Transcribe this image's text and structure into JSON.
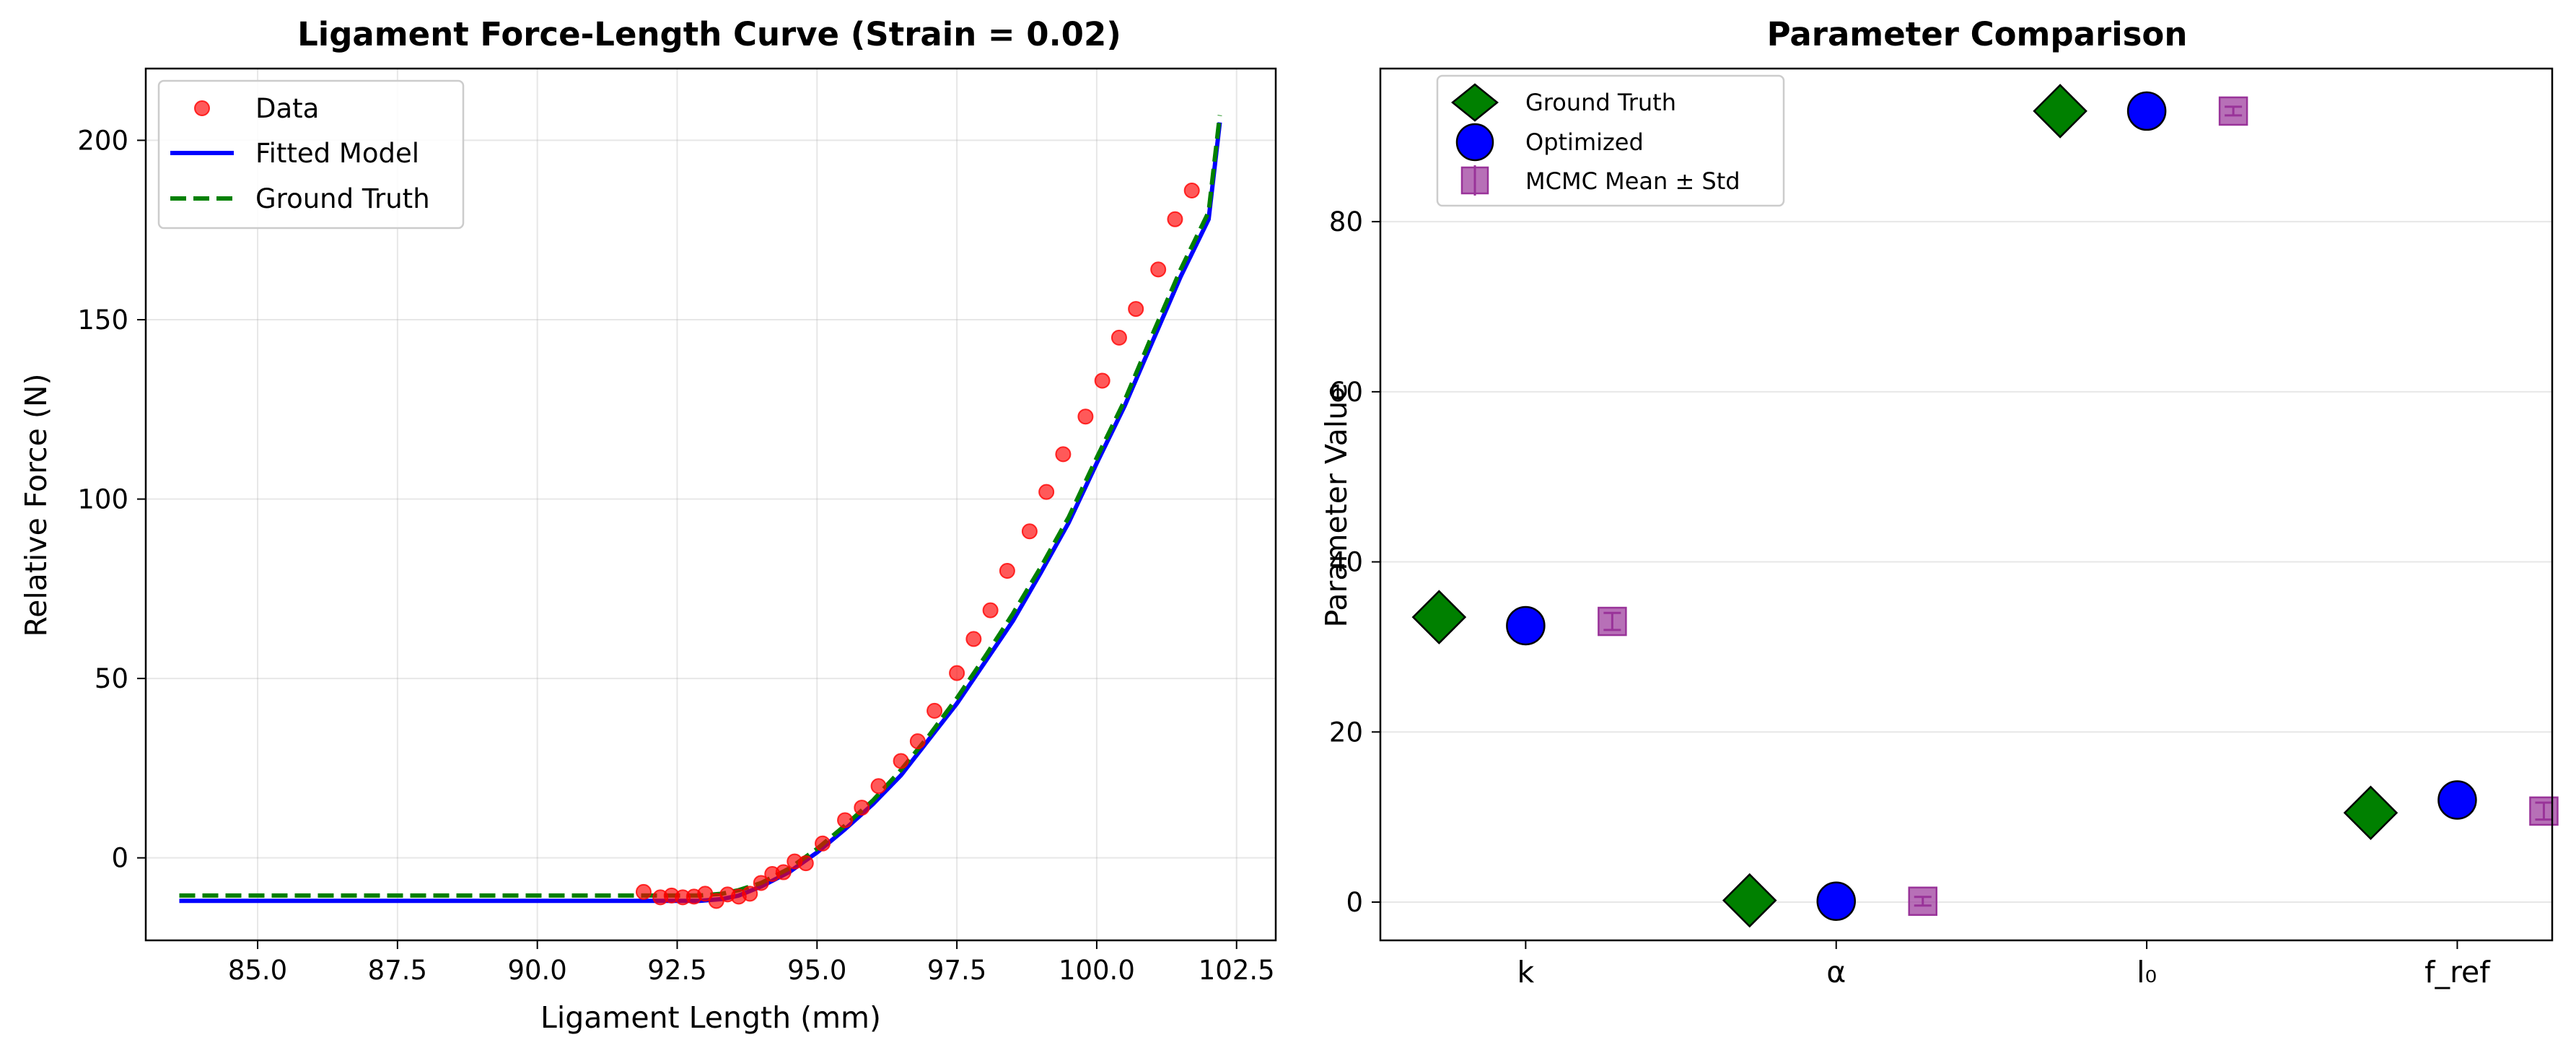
{
  "chart_data": [
    {
      "type": "line",
      "title": "Ligament Force-Length Curve (Strain = 0.02)",
      "xlabel": "Ligament Length (mm)",
      "ylabel": "Relative Force (N)",
      "xlim": [
        83.0,
        103.2
      ],
      "ylim": [
        -23,
        220
      ],
      "xticks": [
        "85.0",
        "87.5",
        "90.0",
        "92.5",
        "95.0",
        "97.5",
        "100.0",
        "102.5"
      ],
      "xtick_values": [
        85.0,
        87.5,
        90.0,
        92.5,
        95.0,
        97.5,
        100.0,
        102.5
      ],
      "yticks": [
        "0",
        "50",
        "100",
        "150",
        "200"
      ],
      "ytick_values": [
        0,
        50,
        100,
        150,
        200
      ],
      "grid": true,
      "legend_position": "top-left",
      "colors": {
        "data": "#ff0000",
        "fitted": "#0000ff",
        "ground_truth": "#008000"
      },
      "series": [
        {
          "name": "Data",
          "kind": "scatter",
          "x": [
            91.9,
            92.2,
            92.4,
            92.6,
            92.8,
            93.0,
            93.2,
            93.4,
            93.6,
            93.8,
            94.0,
            94.2,
            94.4,
            94.6,
            94.8,
            95.1,
            95.5,
            95.8,
            96.1,
            96.5,
            96.8,
            97.1,
            97.5,
            97.8,
            98.1,
            98.4,
            98.8,
            99.1,
            99.4,
            99.8,
            100.1,
            100.4,
            100.7,
            101.1,
            101.4,
            101.7
          ],
          "y": [
            -9.5,
            -11.0,
            -10.5,
            -11.0,
            -10.8,
            -10.0,
            -12.0,
            -10.2,
            -10.8,
            -10.0,
            -7.0,
            -4.5,
            -4.0,
            -1.0,
            -1.5,
            4.0,
            10.5,
            14.0,
            20.0,
            27.0,
            32.5,
            41.0,
            51.5,
            61.0,
            69.0,
            80.0,
            91.0,
            102.0,
            112.5,
            123.0,
            133.0,
            145.0,
            153.0,
            164.0,
            178.0,
            186.0
          ]
        },
        {
          "name": "Fitted Model",
          "kind": "line",
          "x": [
            83.6,
            92.9,
            93.3,
            93.6,
            94.0,
            94.5,
            95.0,
            95.5,
            96.0,
            96.5,
            97.0,
            97.5,
            98.0,
            98.5,
            99.0,
            99.5,
            100.0,
            100.5,
            101.0,
            101.5,
            102.0,
            102.2
          ],
          "y": [
            -12.0,
            -12.0,
            -11.5,
            -10.5,
            -8.0,
            -4.0,
            1.5,
            8.0,
            15.0,
            23.0,
            33.0,
            43.0,
            54.5,
            66.0,
            79.5,
            93.5,
            110.0,
            126.0,
            144.0,
            162.0,
            178.0,
            205.0
          ]
        },
        {
          "name": "Ground Truth",
          "kind": "line",
          "x": [
            83.6,
            92.9,
            93.3,
            93.6,
            94.0,
            94.5,
            95.0,
            95.5,
            96.0,
            96.5,
            97.0,
            97.5,
            98.0,
            98.5,
            99.0,
            99.5,
            100.0,
            100.5,
            101.0,
            101.5,
            102.0,
            102.2
          ],
          "y": [
            -10.5,
            -10.5,
            -10.0,
            -9.0,
            -7.0,
            -3.0,
            2.5,
            9.0,
            16.0,
            24.5,
            34.0,
            44.5,
            56.0,
            68.0,
            81.0,
            95.0,
            111.5,
            127.5,
            146.0,
            164.0,
            180.0,
            207.0
          ]
        }
      ]
    },
    {
      "type": "scatter",
      "title": "Parameter Comparison",
      "xlabel": "",
      "ylabel": "Parameter Value",
      "categories": [
        "k",
        "α",
        "l₀",
        "f_ref"
      ],
      "ylim": [
        -4.5,
        98
      ],
      "yticks": [
        "0",
        "20",
        "40",
        "60",
        "80"
      ],
      "ytick_values": [
        0,
        20,
        40,
        60,
        80
      ],
      "grid": true,
      "legend_position": "top-left",
      "colors": {
        "ground_truth": "#008000",
        "optimized": "#0000ff",
        "mcmc": "#993399"
      },
      "series": [
        {
          "name": "Ground Truth",
          "marker": "diamond",
          "values": [
            33.5,
            0.2,
            93.0,
            10.5
          ]
        },
        {
          "name": "Optimized",
          "marker": "circle",
          "values": [
            32.5,
            0.1,
            93.0,
            12.0
          ]
        },
        {
          "name": "MCMC Mean ± Std",
          "marker": "square",
          "values": [
            33.0,
            0.1,
            93.0,
            10.7
          ],
          "std": [
            1.0,
            0.05,
            0.5,
            1.0
          ]
        }
      ]
    }
  ]
}
